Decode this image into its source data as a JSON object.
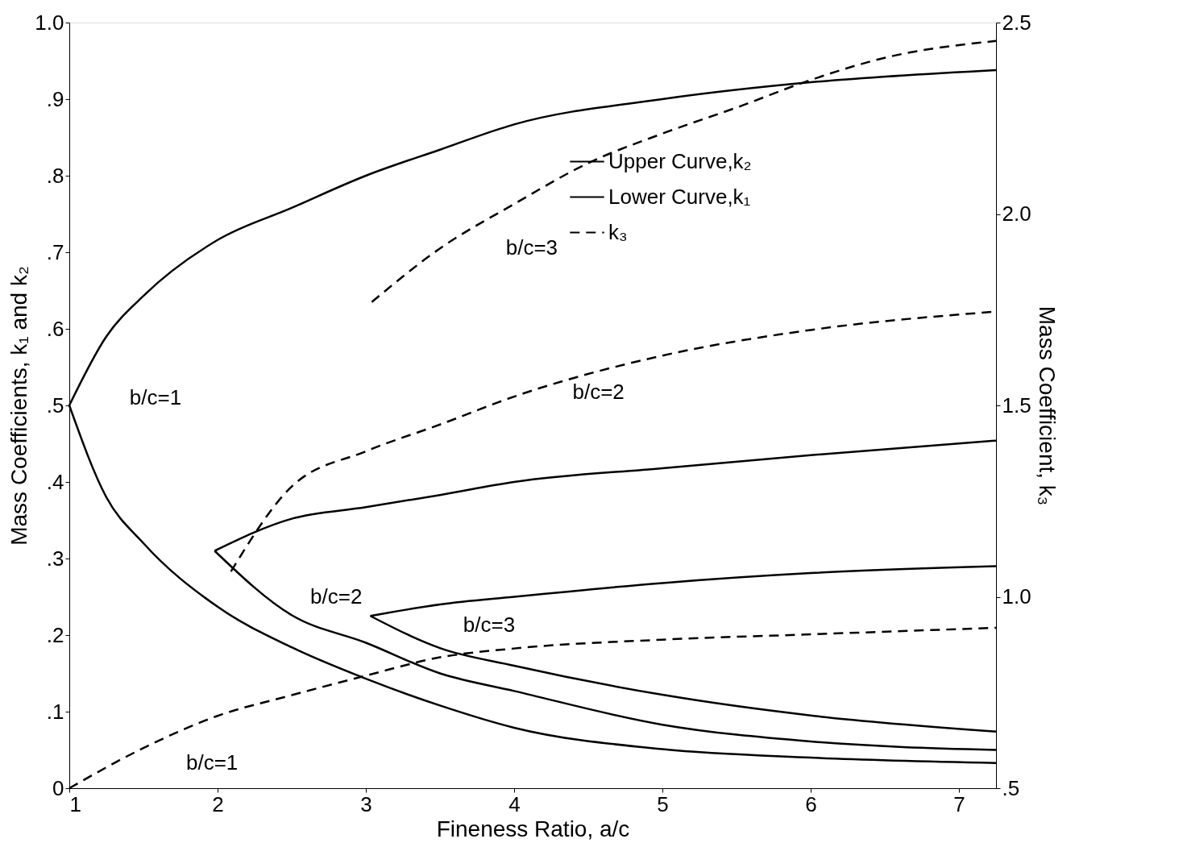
{
  "chart_data": {
    "type": "line",
    "xlabel": "Fineness Ratio, a/c",
    "ylabel": "Mass Coefficients, k₁ and k₂",
    "y2label": "Mass Coefficient, k₃",
    "xlim": [
      1,
      7.25
    ],
    "xticks": [
      1,
      2,
      3,
      4,
      5,
      6,
      7
    ],
    "ylim": [
      0,
      1.0
    ],
    "yticks": [
      {
        "value": 0,
        "label": "0"
      },
      {
        "value": 0.1,
        "label": ".1"
      },
      {
        "value": 0.2,
        "label": ".2"
      },
      {
        "value": 0.3,
        "label": ".3"
      },
      {
        "value": 0.4,
        "label": ".4"
      },
      {
        "value": 0.5,
        "label": ".5"
      },
      {
        "value": 0.6,
        "label": ".6"
      },
      {
        "value": 0.7,
        "label": ".7"
      },
      {
        "value": 0.8,
        "label": ".8"
      },
      {
        "value": 0.9,
        "label": ".9"
      },
      {
        "value": 1.0,
        "label": "1.0"
      }
    ],
    "y2lim": [
      0.5,
      2.5
    ],
    "y2ticks": [
      {
        "value": 0.5,
        "label": ".5"
      },
      {
        "value": 1.0,
        "label": "1.0"
      },
      {
        "value": 1.5,
        "label": "1.5"
      },
      {
        "value": 2.0,
        "label": "2.0"
      },
      {
        "value": 2.5,
        "label": "2.5"
      }
    ],
    "grid": false,
    "legend": "top right",
    "marker": "none",
    "series": [
      {
        "name": "Upper Curve,k₂",
        "color": "#000000",
        "line_style": "solid",
        "x": [
          1,
          1.25,
          1.5,
          2,
          2.5,
          3,
          3.5,
          4,
          5,
          6,
          7.25
        ],
        "values": [
          0.5,
          0.59,
          0.643,
          0.716,
          0.758,
          0.8,
          0.834,
          0.867,
          0.9,
          0.922,
          0.938
        ]
      },
      {
        "name": "Lower Curve,k₁",
        "color": "#000000",
        "line_style": "solid",
        "x": [
          1,
          1.25,
          1.5,
          2,
          2.5,
          3,
          3.5,
          4,
          5,
          6,
          7.25
        ],
        "values": [
          0.5,
          0.38,
          0.32,
          0.237,
          0.184,
          0.143,
          0.108,
          0.079,
          0.051,
          0.04,
          0.033
        ]
      },
      {
        "color": "#000000",
        "line_style": "solid",
        "x": [
          1.98,
          2.5,
          3,
          3.5,
          4,
          5,
          6,
          7.25
        ],
        "values": [
          0.31,
          0.352,
          0.367,
          0.383,
          0.4,
          0.418,
          0.435,
          0.454
        ]
      },
      {
        "color": "#000000",
        "line_style": "solid",
        "x": [
          1.98,
          2.5,
          3,
          3.5,
          4,
          5,
          6,
          7.25
        ],
        "values": [
          0.31,
          0.226,
          0.19,
          0.15,
          0.127,
          0.083,
          0.061,
          0.05
        ]
      },
      {
        "color": "#000000",
        "line_style": "solid",
        "x": [
          3.03,
          3.5,
          4,
          5,
          6,
          7.25
        ],
        "values": [
          0.225,
          0.24,
          0.25,
          0.268,
          0.281,
          0.29
        ]
      },
      {
        "color": "#000000",
        "line_style": "solid",
        "x": [
          3.03,
          3.5,
          4,
          5,
          6,
          7.25
        ],
        "values": [
          0.225,
          0.183,
          0.16,
          0.122,
          0.095,
          0.074
        ]
      },
      {
        "name": "k₃",
        "color": "#000000",
        "line_style": "dashed",
        "axis": "y2",
        "x": [
          1,
          1.5,
          2,
          2.5,
          3,
          3.5,
          4,
          5,
          6,
          7.25
        ],
        "values": [
          0.5,
          0.605,
          0.689,
          0.743,
          0.794,
          0.842,
          0.865,
          0.888,
          0.902,
          0.919
        ]
      },
      {
        "color": "#000000",
        "line_style": "dashed",
        "axis": "y2",
        "x": [
          2.09,
          2.5,
          3,
          3.5,
          4,
          5,
          6,
          7.25
        ],
        "values": [
          1.066,
          1.288,
          1.38,
          1.45,
          1.523,
          1.63,
          1.697,
          1.745
        ]
      },
      {
        "color": "#000000",
        "line_style": "dashed",
        "axis": "y2",
        "x": [
          3.04,
          3.5,
          4,
          4.5,
          5,
          5.5,
          6,
          6.5,
          7.25
        ],
        "values": [
          1.77,
          1.91,
          2.026,
          2.133,
          2.21,
          2.278,
          2.35,
          2.408,
          2.452
        ]
      }
    ],
    "annotations": [
      "b/c=1",
      "b/c=3",
      "b/c=2",
      "b/c=2",
      "b/c=3",
      "b/c=1"
    ]
  }
}
